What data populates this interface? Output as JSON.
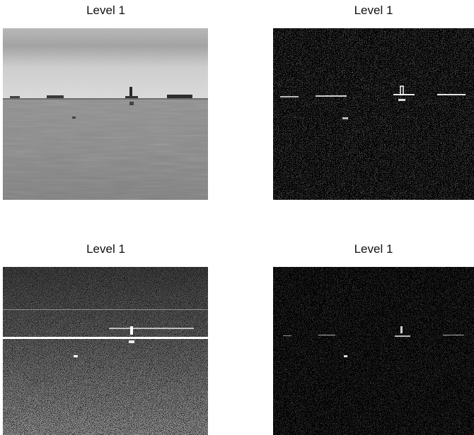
{
  "panels": [
    {
      "title": "Level 1",
      "kind": "approximation"
    },
    {
      "title": "Level 1",
      "kind": "horizontal-detail"
    },
    {
      "title": "Level 1",
      "kind": "vertical-detail"
    },
    {
      "title": "Level 1",
      "kind": "diagonal-detail"
    }
  ]
}
